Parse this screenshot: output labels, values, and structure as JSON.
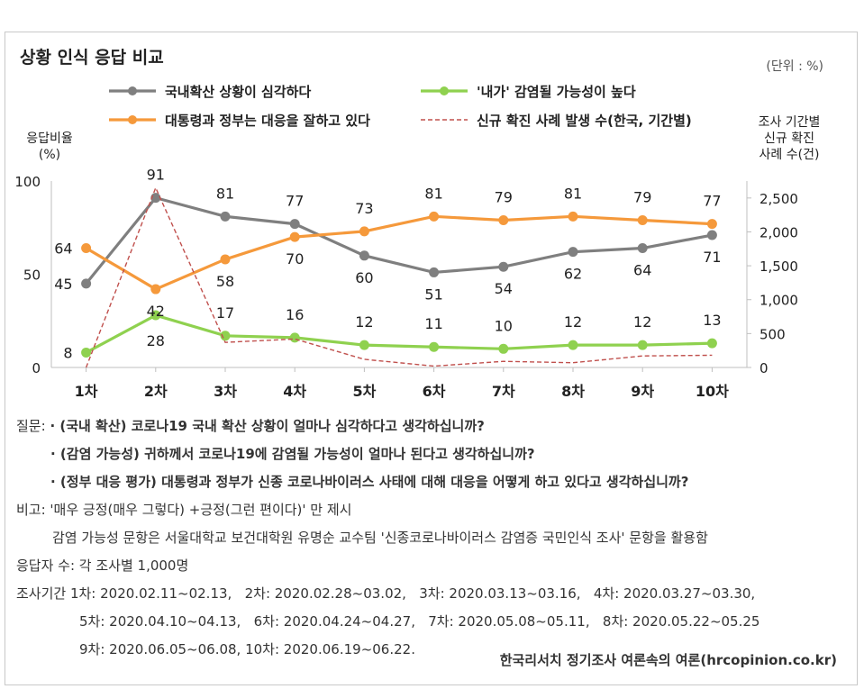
{
  "title": "상황 인식 응답 비교",
  "unit_note": "(단위 : %)",
  "left_axis_title": [
    "응답비율",
    "(%)"
  ],
  "right_axis_title": [
    "조사 기간별",
    "신규 확진",
    "사례 수(건)"
  ],
  "chart_data": {
    "type": "line",
    "categories": [
      "1차",
      "2차",
      "3차",
      "4차",
      "5차",
      "6차",
      "7차",
      "8차",
      "9차",
      "10차"
    ],
    "left_axis": {
      "ylim": [
        0,
        100
      ],
      "ticks": [
        "0",
        "50",
        "100"
      ]
    },
    "right_axis": {
      "ylim": [
        0,
        2750
      ],
      "ticks": [
        "0",
        "500",
        "1,000",
        "1,500",
        "2,000",
        "2,500"
      ]
    },
    "series": [
      {
        "name": "국내확산 상황이 심각하다",
        "axis": "left",
        "color": "#7f7f7f",
        "style": "solid",
        "values": [
          45,
          91,
          81,
          77,
          60,
          51,
          54,
          62,
          64,
          71
        ]
      },
      {
        "name": "대통령과 정부는 대응을 잘하고 있다",
        "axis": "left",
        "color": "#f5993b",
        "style": "solid",
        "values": [
          64,
          42,
          58,
          70,
          73,
          81,
          79,
          81,
          79,
          77
        ]
      },
      {
        "name": "'내가' 감염될 가능성이 높다",
        "axis": "left",
        "color": "#8fd14f",
        "style": "solid",
        "values": [
          8,
          28,
          17,
          16,
          12,
          11,
          10,
          12,
          12,
          13
        ]
      },
      {
        "name": "신규 확진 사례 발생 수(한국, 기간별)",
        "axis": "right",
        "color": "#c0504d",
        "style": "dashed",
        "values": [
          0,
          2650,
          370,
          420,
          120,
          20,
          90,
          70,
          170,
          180
        ]
      }
    ]
  },
  "notes": {
    "q_label": "질문:",
    "q1": "· (국내 확산) 코로나19 국내 확산 상황이 얼마나 심각하다고 생각하십니까?",
    "q2": "· (감염 가능성) 귀하께서 코로나19에 감염될 가능성이 얼마나 된다고 생각하십니까?",
    "q3": "· (정부 대응 평가) 대통령과 정부가 신종 코로나바이러스 사태에 대해 대응을 어떻게 하고 있다고 생각하십니까?",
    "remark1": "비고: '매우 긍정(매우 그렇다) +긍정(그런 편이다)' 만 제시",
    "remark2": "감염 가능성 문항은 서울대학교 보건대학원 유명순 교수팀 '신종코로나바이러스 감염증 국민인식 조사' 문항을 활용함",
    "sample": "응답자 수: 각 조사별 1,000명",
    "period1": "조사기간 1차: 2020.02.11~02.13,   2차: 2020.02.28~03.02,   3차: 2020.03.13~03.16,   4차: 2020.03.27~03.30,",
    "period2": "5차: 2020.04.10~04.13,   6차: 2020.04.24~04.27,   7차: 2020.05.08~05.11,   8차: 2020.05.22~05.25",
    "period3": "9차: 2020.06.05~06.08, 10차: 2020.06.19~06.22."
  },
  "source": "한국리서치 정기조사 여론속의 여론(hrcopinion.co.kr)"
}
